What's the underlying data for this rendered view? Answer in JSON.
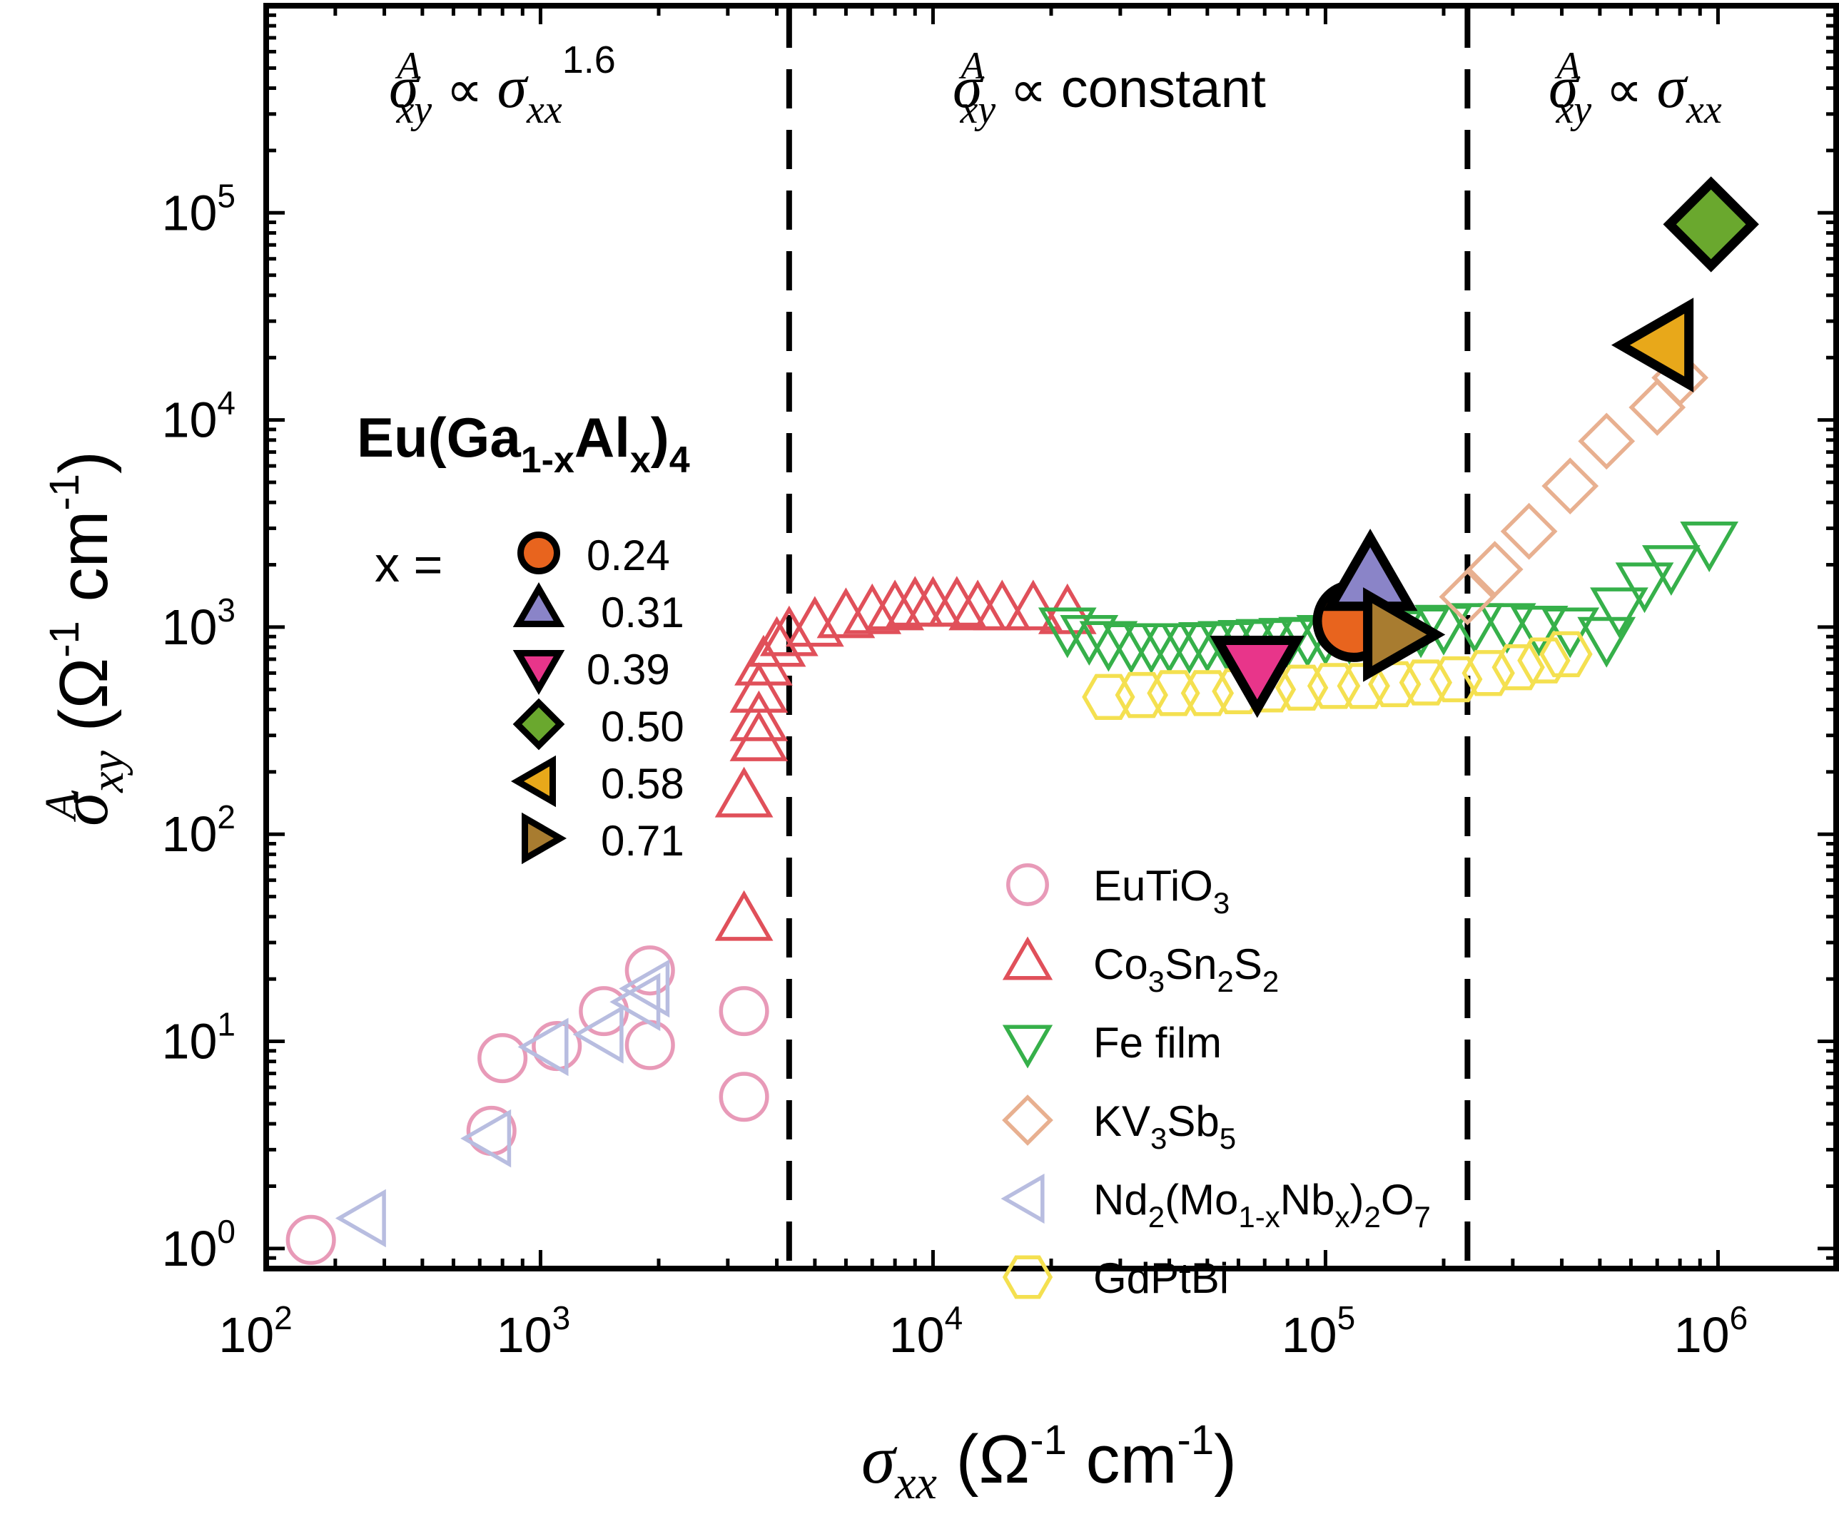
{
  "chart_data": {
    "type": "scatter",
    "x_scale": "log",
    "y_scale": "log",
    "xlim": [
      200,
      2000000
    ],
    "ylim": [
      0.8,
      1000000
    ],
    "x_ticks": [
      {
        "value": 100,
        "base": "10",
        "exp": "2"
      },
      {
        "value": 1000,
        "base": "10",
        "exp": "3"
      },
      {
        "value": 10000,
        "base": "10",
        "exp": "4"
      },
      {
        "value": 100000,
        "base": "10",
        "exp": "5"
      },
      {
        "value": 1000000,
        "base": "10",
        "exp": "6"
      }
    ],
    "y_ticks": [
      {
        "value": 1,
        "base": "10",
        "exp": "0"
      },
      {
        "value": 10,
        "base": "10",
        "exp": "1"
      },
      {
        "value": 100,
        "base": "10",
        "exp": "2"
      },
      {
        "value": 1000,
        "base": "10",
        "exp": "3"
      },
      {
        "value": 10000,
        "base": "10",
        "exp": "4"
      },
      {
        "value": 100000,
        "base": "10",
        "exp": "5"
      }
    ],
    "xlabel": {
      "sym": "σ",
      "sub": "xx",
      "unit_open": " (Ω",
      "sup1": "-1",
      "unit_mid": " cm",
      "sup2": "-1",
      "unit_close": ")"
    },
    "ylabel": {
      "sym": "σ",
      "sup": "A",
      "sub": "xy",
      "unit_open": " (Ω",
      "sup1": "-1",
      "unit_mid": " cm",
      "sup2": "-1",
      "unit_close": ")"
    },
    "dividers": [
      4300,
      230000
    ],
    "regions": [
      {
        "sym": "σ",
        "sup": "A",
        "sub": "xy",
        "prop": "∝",
        "rhs_sym": "σ",
        "rhs_sub": "xx",
        "rhs_sup": "1.6",
        "rhs_text": ""
      },
      {
        "sym": "σ",
        "sup": "A",
        "sub": "xy",
        "prop": "∝",
        "rhs_sym": "",
        "rhs_sub": "",
        "rhs_sup": "",
        "rhs_text": "constant"
      },
      {
        "sym": "σ",
        "sup": "A",
        "sub": "xy",
        "prop": "∝",
        "rhs_sym": "σ",
        "rhs_sub": "xx",
        "rhs_sup": "",
        "rhs_text": ""
      }
    ],
    "compound": {
      "base": "Eu(Ga",
      "sub1": "1-x",
      "mid": "Al",
      "sub2": "x",
      "close": ")",
      "sub3": "4"
    },
    "x_equals": "x =",
    "reference_series": [
      {
        "name": "EuTiO3",
        "label_parts": [
          {
            "t": "EuTiO"
          },
          {
            "t": "3",
            "sub": true
          }
        ],
        "marker": "circle",
        "color": "#e89ab8",
        "points": [
          [
            260,
            1.1
          ],
          [
            750,
            3.7
          ],
          [
            800,
            8.3
          ],
          [
            1100,
            9.5
          ],
          [
            1450,
            14
          ],
          [
            1900,
            22
          ],
          [
            1900,
            9.6
          ],
          [
            3300,
            14
          ],
          [
            3300,
            5.4
          ]
        ]
      },
      {
        "name": "Co3Sn2S2",
        "label_parts": [
          {
            "t": " Co"
          },
          {
            "t": "3",
            "sub": true
          },
          {
            "t": "Sn"
          },
          {
            "t": "2",
            "sub": true
          },
          {
            "t": "S"
          },
          {
            "t": "2",
            "sub": true
          }
        ],
        "marker": "triangle-up",
        "color": "#e0505a",
        "points": [
          [
            3300,
            38
          ],
          [
            3300,
            150
          ],
          [
            3600,
            280
          ],
          [
            3600,
            350
          ],
          [
            3600,
            480
          ],
          [
            3700,
            650
          ],
          [
            4000,
            800
          ],
          [
            4300,
            900
          ],
          [
            5000,
            1000
          ],
          [
            6000,
            1100
          ],
          [
            7000,
            1150
          ],
          [
            8000,
            1200
          ],
          [
            9000,
            1250
          ],
          [
            10000,
            1250
          ],
          [
            11500,
            1250
          ],
          [
            13000,
            1200
          ],
          [
            15000,
            1200
          ],
          [
            18000,
            1200
          ],
          [
            22000,
            1150
          ]
        ]
      },
      {
        "name": "Fe film",
        "label_parts": [
          {
            "t": "Fe film"
          }
        ],
        "marker": "triangle-down",
        "color": "#36b04a",
        "points": [
          [
            22000,
            1000
          ],
          [
            25000,
            920
          ],
          [
            28000,
            860
          ],
          [
            32000,
            840
          ],
          [
            36000,
            840
          ],
          [
            40000,
            840
          ],
          [
            45000,
            840
          ],
          [
            50000,
            850
          ],
          [
            56000,
            860
          ],
          [
            63000,
            870
          ],
          [
            70000,
            880
          ],
          [
            80000,
            890
          ],
          [
            90000,
            900
          ],
          [
            100000,
            920
          ],
          [
            115000,
            930
          ],
          [
            130000,
            950
          ],
          [
            150000,
            970
          ],
          [
            175000,
            1000
          ],
          [
            200000,
            1030
          ],
          [
            240000,
            1050
          ],
          [
            290000,
            1050
          ],
          [
            350000,
            1020
          ],
          [
            420000,
            1000
          ],
          [
            520000,
            900
          ],
          [
            560000,
            1250
          ],
          [
            650000,
            1650
          ],
          [
            760000,
            2000
          ],
          [
            950000,
            2600
          ]
        ]
      },
      {
        "name": "KV3Sb5",
        "label_parts": [
          {
            "t": "KV"
          },
          {
            "t": "3",
            "sub": true
          },
          {
            "t": "Sb"
          },
          {
            "t": "5",
            "sub": true
          }
        ],
        "marker": "diamond",
        "color": "#e8b090",
        "points": [
          [
            230000,
            1400
          ],
          [
            270000,
            1900
          ],
          [
            330000,
            2900
          ],
          [
            420000,
            4800
          ],
          [
            520000,
            7900
          ],
          [
            700000,
            11500
          ],
          [
            800000,
            16000
          ]
        ]
      },
      {
        "name": "Nd2(Mo1-xNbx)2O7",
        "label_parts": [
          {
            "t": "Nd"
          },
          {
            "t": "2",
            "sub": true
          },
          {
            "t": "(Mo"
          },
          {
            "t": "1-x",
            "sub": true
          },
          {
            "t": "Nb"
          },
          {
            "t": "x",
            "sub": true
          },
          {
            "t": ")"
          },
          {
            "t": "2",
            "sub": true
          },
          {
            "t": "O"
          },
          {
            "t": "7",
            "sub": true
          }
        ],
        "marker": "triangle-left",
        "color": "#b8bde0",
        "points": [
          [
            360,
            1.4
          ],
          [
            750,
            3.4
          ],
          [
            1050,
            9.4
          ],
          [
            1450,
            10.8
          ],
          [
            1800,
            15.5
          ],
          [
            1900,
            18
          ]
        ]
      },
      {
        "name": "GdPtBi",
        "label_parts": [
          {
            "t": "GdPtBi"
          }
        ],
        "marker": "hexagon",
        "color": "#f4e050",
        "points": [
          [
            28000,
            460
          ],
          [
            34000,
            470
          ],
          [
            41000,
            480
          ],
          [
            50000,
            480
          ],
          [
            60000,
            490
          ],
          [
            72000,
            500
          ],
          [
            87000,
            510
          ],
          [
            105000,
            520
          ],
          [
            125000,
            520
          ],
          [
            150000,
            530
          ],
          [
            180000,
            540
          ],
          [
            215000,
            560
          ],
          [
            260000,
            600
          ],
          [
            310000,
            640
          ],
          [
            360000,
            690
          ],
          [
            410000,
            740
          ]
        ]
      }
    ],
    "sample_series": [
      {
        "x_label": "0.24",
        "marker": "circle",
        "color": "#e8641e",
        "points": [
          [
            118000,
            1070
          ]
        ]
      },
      {
        "x_label": "0.31",
        "marker": "triangle-up",
        "color": "#8a84c8",
        "points": [
          [
            130000,
            1700
          ]
        ]
      },
      {
        "x_label": "0.39",
        "marker": "triangle-down",
        "color": "#e8358a",
        "points": [
          [
            67000,
            640
          ]
        ]
      },
      {
        "x_label": "0.50",
        "marker": "diamond",
        "color": "#6aa82e",
        "points": [
          [
            960000,
            88000
          ]
        ]
      },
      {
        "x_label": "0.58",
        "marker": "triangle-left",
        "color": "#e8a81a",
        "points": [
          [
            720000,
            23000
          ]
        ]
      },
      {
        "x_label": "0.71",
        "marker": "triangle-right",
        "color": "#a87c30",
        "points": [
          [
            150000,
            920
          ]
        ]
      }
    ]
  }
}
